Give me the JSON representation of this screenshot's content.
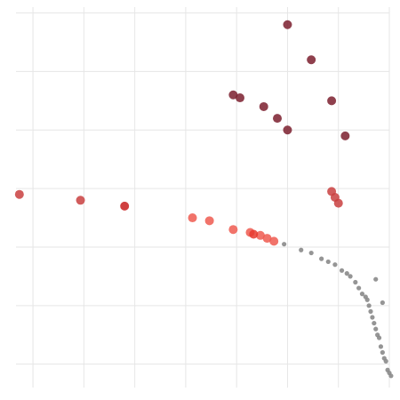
{
  "chart_data": {
    "type": "scatter",
    "title": "",
    "xlabel": "",
    "ylabel": "",
    "grid": true,
    "legend": "none",
    "xlim": [
      0,
      11
    ],
    "ylim": [
      0,
      6.5
    ],
    "x_gridlines": [
      0.5,
      2,
      3.5,
      5,
      6.5,
      8,
      9.5,
      11
    ],
    "y_gridlines": [
      0.4,
      1.4,
      2.4,
      3.4,
      4.4,
      5.4,
      6.4
    ],
    "series": [
      {
        "color": "#7b1f2e",
        "marker": "large",
        "points": [
          [
            8,
            6.2
          ],
          [
            8.7,
            5.6
          ],
          [
            6.4,
            5.0
          ],
          [
            6.6,
            4.95
          ],
          [
            7.3,
            4.8
          ],
          [
            9.3,
            4.9
          ],
          [
            7.7,
            4.6
          ],
          [
            8.0,
            4.4
          ],
          [
            9.7,
            4.3
          ]
        ]
      },
      {
        "color": "#c94040",
        "marker": "large",
        "points": [
          [
            0.1,
            3.3
          ],
          [
            1.9,
            3.2
          ],
          [
            9.3,
            3.35
          ],
          [
            9.4,
            3.25
          ],
          [
            9.5,
            3.15
          ]
        ]
      },
      {
        "color": "#c81e1e",
        "marker": "large",
        "points": [
          [
            3.2,
            3.1
          ]
        ]
      },
      {
        "color": "#ef5a50",
        "marker": "large",
        "points": [
          [
            5.2,
            2.9
          ],
          [
            5.7,
            2.85
          ],
          [
            6.4,
            2.7
          ],
          [
            6.9,
            2.65
          ],
          [
            7.2,
            2.6
          ],
          [
            7.4,
            2.55
          ],
          [
            7.6,
            2.5
          ]
        ]
      },
      {
        "color": "#e63a2e",
        "marker": "large",
        "points": [
          [
            7.0,
            2.62
          ]
        ]
      },
      {
        "color": "#8a8a8a",
        "marker": "small",
        "points": [
          [
            7.9,
            2.45
          ],
          [
            8.4,
            2.35
          ],
          [
            8.7,
            2.3
          ],
          [
            9.0,
            2.2
          ],
          [
            9.2,
            2.15
          ],
          [
            9.4,
            2.1
          ],
          [
            9.6,
            2.0
          ],
          [
            9.75,
            1.95
          ],
          [
            9.85,
            1.9
          ],
          [
            10.0,
            1.8
          ],
          [
            10.1,
            1.7
          ],
          [
            10.2,
            1.6
          ],
          [
            10.3,
            1.55
          ],
          [
            10.35,
            1.5
          ],
          [
            10.4,
            1.4
          ],
          [
            10.45,
            1.3
          ],
          [
            10.5,
            1.2
          ],
          [
            10.55,
            1.1
          ],
          [
            10.6,
            1.0
          ],
          [
            10.65,
            0.9
          ],
          [
            10.7,
            0.85
          ],
          [
            10.75,
            0.7
          ],
          [
            10.8,
            0.6
          ],
          [
            10.85,
            0.5
          ],
          [
            10.9,
            0.45
          ],
          [
            10.95,
            0.3
          ],
          [
            11.0,
            0.25
          ],
          [
            10.6,
            1.85
          ],
          [
            10.8,
            1.45
          ],
          [
            11.05,
            0.2
          ]
        ]
      }
    ]
  }
}
